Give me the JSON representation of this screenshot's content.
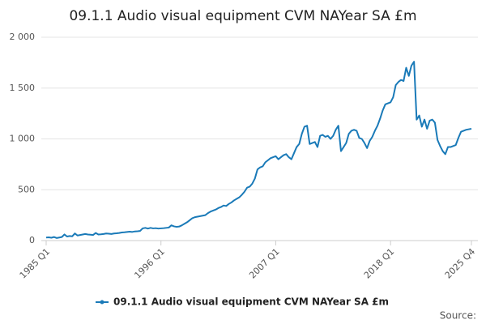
{
  "chart_data": {
    "type": "line",
    "title": "09.1.1 Audio visual equipment CVM NAYear SA £m",
    "source": "Source:",
    "categories": [
      "1985 Q1",
      null,
      null,
      null,
      null,
      null,
      null,
      null,
      null,
      null,
      null,
      null,
      null,
      null,
      null,
      null,
      null,
      null,
      null,
      null,
      null,
      null,
      null,
      null,
      null,
      null,
      null,
      null,
      null,
      null,
      null,
      null,
      null,
      null,
      null,
      null,
      null,
      null,
      null,
      null,
      null,
      null,
      null,
      null,
      "1996 Q1",
      null,
      null,
      null,
      null,
      null,
      null,
      null,
      null,
      null,
      null,
      null,
      null,
      null,
      null,
      null,
      null,
      null,
      null,
      null,
      null,
      null,
      null,
      null,
      null,
      null,
      null,
      null,
      null,
      null,
      null,
      null,
      null,
      null,
      null,
      null,
      null,
      null,
      null,
      null,
      null,
      null,
      null,
      null,
      "2007 Q1",
      null,
      null,
      null,
      null,
      null,
      null,
      null,
      null,
      null,
      null,
      null,
      null,
      null,
      null,
      null,
      null,
      null,
      null,
      null,
      null,
      null,
      null,
      null,
      null,
      null,
      null,
      null,
      null,
      null,
      null,
      null,
      null,
      null,
      null,
      null,
      null,
      null,
      null,
      null,
      null,
      null,
      null,
      null,
      "2018 Q1",
      null,
      null,
      null,
      null,
      null,
      null,
      null,
      null,
      null,
      null,
      null,
      null,
      null,
      null,
      null,
      null,
      null,
      null,
      null,
      null,
      null,
      null,
      null,
      null,
      null,
      null,
      null,
      null,
      null,
      null,
      "2025 Q4"
    ],
    "series": [
      {
        "name": "09.1.1 Audio visual equipment CVM NAYear SA £m",
        "color": "#1a7ab8",
        "values": [
          30,
          32,
          28,
          35,
          25,
          30,
          35,
          60,
          40,
          45,
          42,
          70,
          50,
          55,
          60,
          65,
          60,
          58,
          55,
          75,
          60,
          62,
          65,
          70,
          68,
          65,
          70,
          72,
          75,
          80,
          82,
          85,
          88,
          85,
          90,
          92,
          95,
          120,
          125,
          118,
          125,
          120,
          122,
          118,
          120,
          122,
          125,
          128,
          150,
          140,
          135,
          138,
          150,
          165,
          180,
          200,
          220,
          230,
          235,
          240,
          245,
          250,
          270,
          285,
          295,
          305,
          320,
          330,
          345,
          340,
          360,
          375,
          395,
          410,
          425,
          450,
          480,
          520,
          530,
          560,
          610,
          700,
          720,
          730,
          770,
          790,
          810,
          820,
          830,
          800,
          820,
          840,
          850,
          820,
          800,
          860,
          920,
          950,
          1050,
          1120,
          1130,
          950,
          960,
          970,
          920,
          1030,
          1040,
          1020,
          1030,
          1000,
          1030,
          1090,
          1130,
          880,
          920,
          960,
          1050,
          1080,
          1090,
          1080,
          1010,
          1000,
          960,
          910,
          980,
          1020,
          1080,
          1130,
          1200,
          1280,
          1340,
          1350,
          1360,
          1410,
          1530,
          1560,
          1580,
          1570,
          1700,
          1620,
          1720,
          1760,
          1190,
          1230,
          1120,
          1190,
          1100,
          1180,
          1190,
          1160,
          990,
          930,
          880,
          850,
          920,
          920,
          930,
          940,
          1010,
          1070,
          1080,
          1090,
          1095,
          1100
        ]
      }
    ],
    "ylim": [
      0,
      2000
    ],
    "yticks": [
      0,
      500,
      {
        "value": 1000,
        "label": "1 000"
      },
      {
        "value": 1500,
        "label": "1 500"
      },
      {
        "value": 2000,
        "label": "2 000"
      }
    ],
    "grid": true
  }
}
